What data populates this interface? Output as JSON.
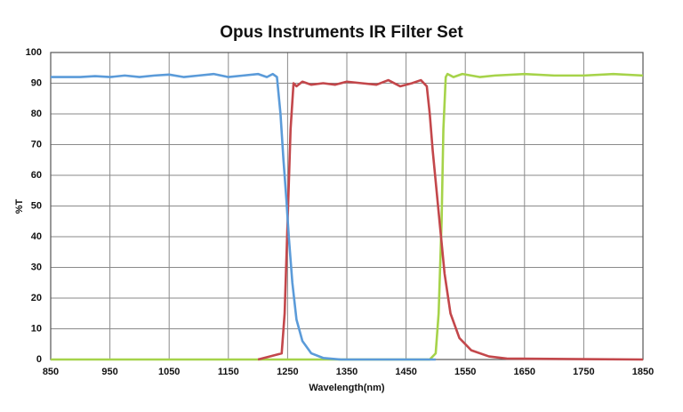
{
  "chart_data": {
    "type": "line",
    "title": "Opus Instruments IR Filter Set",
    "x_label": "Wavelength(nm)",
    "y_label": "%T",
    "xlim": [
      850,
      1850
    ],
    "xticks": [
      850,
      950,
      1050,
      1150,
      1250,
      1350,
      1450,
      1550,
      1650,
      1750,
      1850
    ],
    "ylim": [
      0,
      100
    ],
    "yticks": [
      0,
      10,
      20,
      30,
      40,
      50,
      60,
      70,
      80,
      90,
      100
    ],
    "grid": true,
    "series": [
      {
        "color": "#a6d34a",
        "x": [
          850,
          1490,
          1500,
          1505,
          1510,
          1513,
          1517,
          1520,
          1530,
          1545,
          1575,
          1600,
          1650,
          1700,
          1750,
          1800,
          1850
        ],
        "values": [
          0,
          0,
          2,
          15,
          45,
          75,
          92,
          93,
          92,
          93,
          92,
          92.5,
          93,
          92.5,
          92.5,
          93,
          92.5
        ]
      },
      {
        "color": "#c3474b",
        "x": [
          1200,
          1240,
          1245,
          1250,
          1255,
          1260,
          1265,
          1275,
          1290,
          1310,
          1330,
          1350,
          1375,
          1400,
          1420,
          1440,
          1460,
          1475,
          1485,
          1490,
          1495,
          1500,
          1505,
          1510,
          1515,
          1525,
          1540,
          1560,
          1590,
          1620,
          1850
        ],
        "values": [
          0,
          2,
          15,
          45,
          75,
          90,
          89,
          90.5,
          89.5,
          90,
          89.5,
          90.5,
          90,
          89.5,
          91,
          89,
          90,
          91,
          89,
          80,
          68,
          58,
          48,
          38,
          28,
          15,
          7,
          3,
          1,
          0.3,
          0
        ]
      },
      {
        "color": "#5b9bd9",
        "x": [
          850,
          875,
          900,
          925,
          950,
          975,
          1000,
          1025,
          1050,
          1075,
          1100,
          1125,
          1150,
          1175,
          1200,
          1215,
          1225,
          1232,
          1238,
          1243,
          1248,
          1252,
          1258,
          1265,
          1275,
          1290,
          1310,
          1340,
          1500
        ],
        "values": [
          92,
          92,
          92,
          92.3,
          92,
          92.5,
          92,
          92.5,
          92.8,
          92,
          92.5,
          93,
          92,
          92.5,
          93,
          92,
          93,
          92,
          80,
          65,
          52,
          40,
          25,
          13,
          6,
          2,
          0.5,
          0,
          0
        ]
      }
    ]
  }
}
